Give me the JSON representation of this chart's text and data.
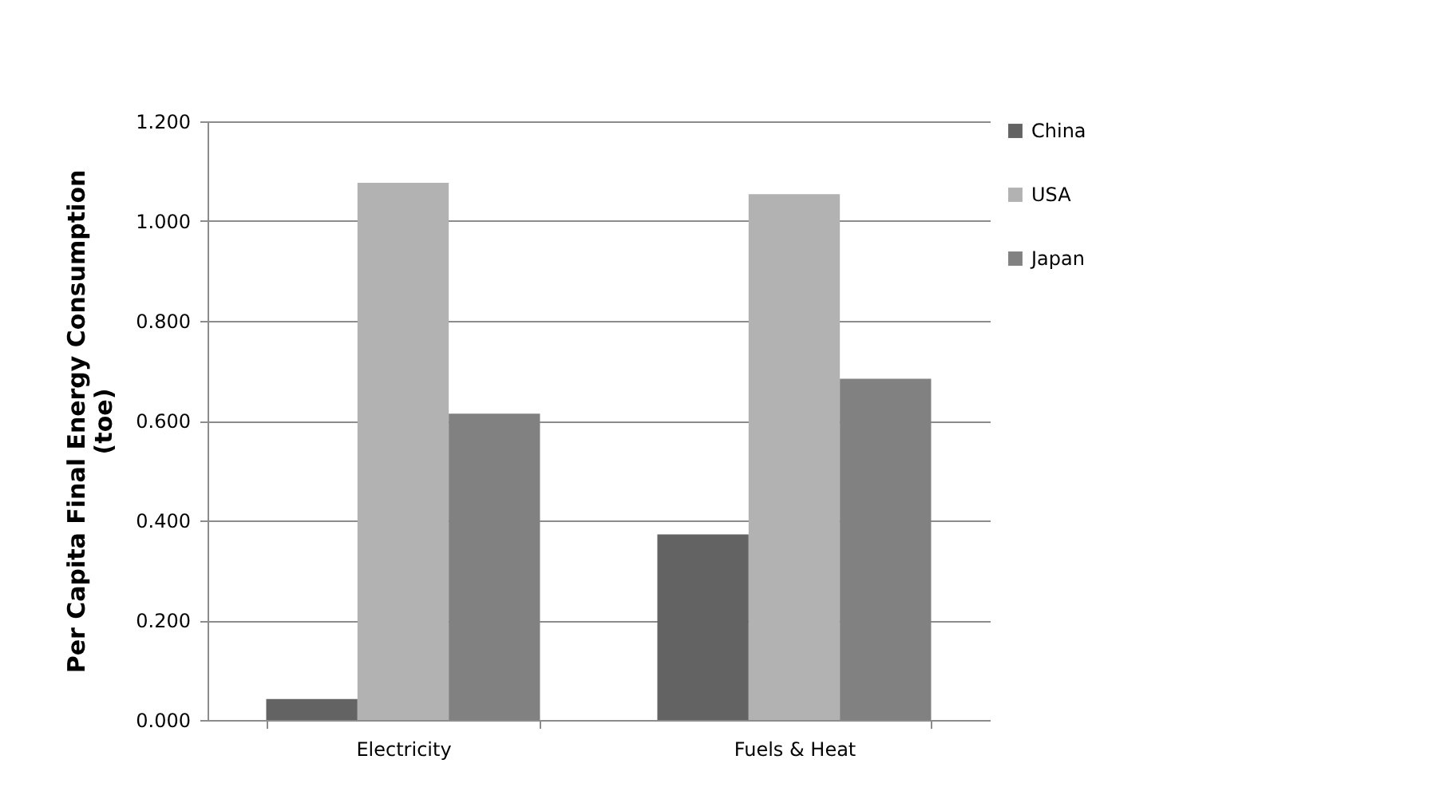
{
  "chart_data": {
    "type": "bar",
    "ylabel": "Per Capita Final Energy Consumption (toe)",
    "categories": [
      "Electricity",
      "Fuels & Heat"
    ],
    "series": [
      {
        "name": "China",
        "color": "#636363",
        "values": [
          0.042,
          0.372
        ]
      },
      {
        "name": "USA",
        "color": "#b2b2b2",
        "values": [
          1.077,
          1.054
        ]
      },
      {
        "name": "Japan",
        "color": "#818181",
        "values": [
          0.614,
          0.684
        ]
      }
    ],
    "ylim": [
      0,
      1.2
    ],
    "yticks": [
      {
        "value": 0,
        "label": "0.000"
      },
      {
        "value": 0.2,
        "label": "0.200"
      },
      {
        "value": 0.4,
        "label": "0.400"
      },
      {
        "value": 0.6,
        "label": "0.600"
      },
      {
        "value": 0.8,
        "label": "0.800"
      },
      {
        "value": 1.0,
        "label": "1.000"
      },
      {
        "value": 1.2,
        "label": "1.200"
      }
    ],
    "grid": "y",
    "legend": "right"
  }
}
